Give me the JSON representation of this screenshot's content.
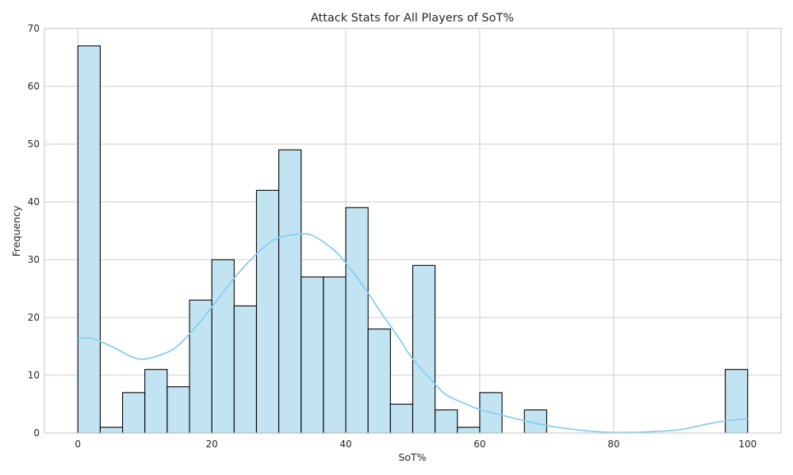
{
  "chart_data": {
    "type": "bar",
    "title": "Attack Stats for All Players of SoT%",
    "xlabel": "SoT%",
    "ylabel": "Frequency",
    "xlim": [
      -5,
      105
    ],
    "ylim": [
      0,
      70
    ],
    "xticks": [
      0,
      20,
      40,
      60,
      80,
      100
    ],
    "yticks": [
      0,
      10,
      20,
      30,
      40,
      50,
      60,
      70
    ],
    "grid": true,
    "bin_edges": [
      0,
      3.333,
      6.667,
      10,
      13.333,
      16.667,
      20,
      23.333,
      26.667,
      30,
      33.333,
      36.667,
      40,
      43.333,
      46.667,
      50,
      53.333,
      56.667,
      60,
      63.333,
      66.667,
      70,
      73.333,
      76.667,
      80,
      83.333,
      86.667,
      90,
      93.333,
      96.667,
      100
    ],
    "values": [
      67,
      1,
      7,
      11,
      8,
      23,
      30,
      22,
      42,
      49,
      27,
      27,
      39,
      18,
      5,
      29,
      4,
      1,
      7,
      0,
      4,
      0,
      0,
      0,
      0,
      0,
      0,
      0,
      0,
      11
    ],
    "kde": {
      "x": [
        0,
        2,
        5,
        8,
        10,
        13,
        15,
        18,
        20,
        23,
        25,
        28,
        30,
        33,
        35,
        38,
        40,
        43,
        45,
        48,
        50,
        53,
        55,
        58,
        60,
        65,
        70,
        75,
        80,
        85,
        90,
        95,
        100
      ],
      "y": [
        16.3,
        16.4,
        15.0,
        13.2,
        12.8,
        13.8,
        15.2,
        18.9,
        21.8,
        26.3,
        29.0,
        32.4,
        33.8,
        34.4,
        34.2,
        31.9,
        29.4,
        24.8,
        21.3,
        16.3,
        12.8,
        8.9,
        6.6,
        5.0,
        4.1,
        2.6,
        1.3,
        0.5,
        0.1,
        0.2,
        0.6,
        1.8,
        2.5
      ]
    },
    "colors": {
      "bar_fill": "#c2e4f2",
      "bar_stroke": "#000000",
      "kde_line": "#87ceeb",
      "grid": "#cccccc",
      "frame": "#cccccc"
    }
  }
}
